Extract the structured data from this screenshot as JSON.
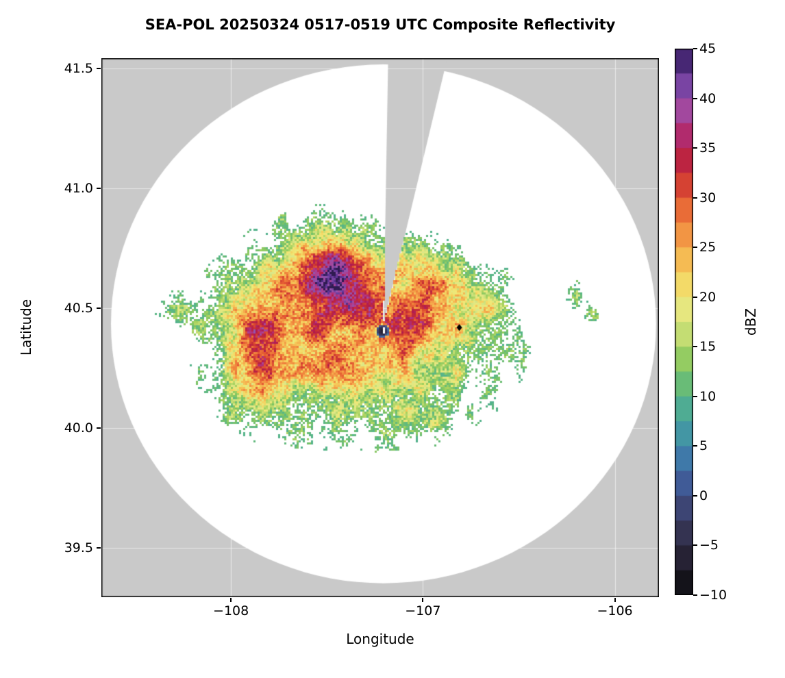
{
  "chart_data": {
    "type": "heatmap",
    "title": "SEA-POL 20250324 0517-0519 UTC Composite Reflectivity",
    "xlabel": "Longitude",
    "ylabel": "Latitude",
    "xlim": [
      -108.675,
      -105.77
    ],
    "ylim": [
      39.295,
      41.543
    ],
    "xticks": [
      -108,
      -107,
      -106
    ],
    "yticks": [
      39.5,
      40.0,
      40.5,
      41.0,
      41.5
    ],
    "grid": "faint white gridlines, visible on gray no-data background",
    "colors": {
      "nodata": "#c9c9c9",
      "coverage": "#ffffff",
      "frame": "#000000"
    },
    "colorbar": {
      "label": "dBZ",
      "min": -10,
      "max": 45,
      "segment_step": 2.5,
      "ticks": [
        -10,
        -5,
        0,
        5,
        10,
        15,
        20,
        25,
        30,
        35,
        40,
        45
      ],
      "stops": [
        [
          -10,
          "#0b0b0d"
        ],
        [
          -7.5,
          "#1e1b28"
        ],
        [
          -5,
          "#2e2a40"
        ],
        [
          -2.5,
          "#3a3c63"
        ],
        [
          0,
          "#414e86"
        ],
        [
          2.5,
          "#3f69a8"
        ],
        [
          5,
          "#4089aa"
        ],
        [
          7.5,
          "#47a49e"
        ],
        [
          10,
          "#57b589"
        ],
        [
          12.5,
          "#7cc465"
        ],
        [
          15,
          "#add45f"
        ],
        [
          17.5,
          "#dbe788"
        ],
        [
          20,
          "#f1e876"
        ],
        [
          22.5,
          "#f5cd5b"
        ],
        [
          25,
          "#f5a94c"
        ],
        [
          27.5,
          "#f0823c"
        ],
        [
          30,
          "#e35632"
        ],
        [
          32.5,
          "#c72e35"
        ],
        [
          35,
          "#b11a4e"
        ],
        [
          37.5,
          "#b23c8d"
        ],
        [
          40,
          "#9355af"
        ],
        [
          42.5,
          "#5f3397"
        ],
        [
          45,
          "#2f1b51"
        ]
      ]
    },
    "radar": {
      "center_lon": -107.205,
      "center_lat": 40.435,
      "range_lon_deg": 1.42,
      "range_lat_deg": 1.082,
      "blocked_sector_deg": [
        1,
        13.5
      ]
    },
    "site_marker": {
      "lon": -106.81,
      "lat": 40.42,
      "shape": "diamond",
      "color": "#000000"
    },
    "clutter_spot": {
      "lon": -107.21,
      "lat": 40.405,
      "rx_deg": 0.034,
      "ry_deg": 0.027,
      "dbz_range": [
        -7,
        5
      ]
    },
    "echo_threshold_dbz": 9.5,
    "echo_blobs": [
      {
        "lon": -107.42,
        "lat": 40.4,
        "sx": 0.46,
        "sy": 0.28,
        "amp": 22
      },
      {
        "lon": -107.47,
        "lat": 40.67,
        "sx": 0.16,
        "sy": 0.105,
        "amp": 24
      },
      {
        "lon": -107.35,
        "lat": 40.56,
        "sx": 0.3,
        "sy": 0.14,
        "amp": 6
      },
      {
        "lon": -107.87,
        "lat": 40.32,
        "sx": 0.11,
        "sy": 0.16,
        "amp": 20
      },
      {
        "lon": -107.55,
        "lat": 40.25,
        "sx": 0.13,
        "sy": 0.1,
        "amp": 7
      },
      {
        "lon": -107.02,
        "lat": 40.47,
        "sx": 0.13,
        "sy": 0.09,
        "amp": 9
      },
      {
        "lon": -106.85,
        "lat": 40.3,
        "sx": 0.3,
        "sy": 0.2,
        "amp": 6
      },
      {
        "lon": -106.73,
        "lat": 40.56,
        "sx": 0.1,
        "sy": 0.09,
        "amp": 11
      },
      {
        "lon": -106.95,
        "lat": 40.66,
        "sx": 0.07,
        "sy": 0.07,
        "amp": 10
      },
      {
        "lon": -108.26,
        "lat": 40.49,
        "sx": 0.1,
        "sy": 0.05,
        "amp": 9
      },
      {
        "lon": -107.0,
        "lat": 40.03,
        "sx": 0.09,
        "sy": 0.05,
        "amp": 8
      },
      {
        "lon": -106.2,
        "lat": 40.55,
        "sx": 0.05,
        "sy": 0.045,
        "amp": 12
      },
      {
        "lon": -106.12,
        "lat": 40.47,
        "sx": 0.04,
        "sy": 0.035,
        "amp": 11
      }
    ],
    "noise": {
      "speckle_amp": 9,
      "warp_amp_coarse": 10,
      "warp_amp_fine": 7,
      "warp_scale_deg": 0.09,
      "warp_scale_fine_deg": 0.035
    }
  }
}
